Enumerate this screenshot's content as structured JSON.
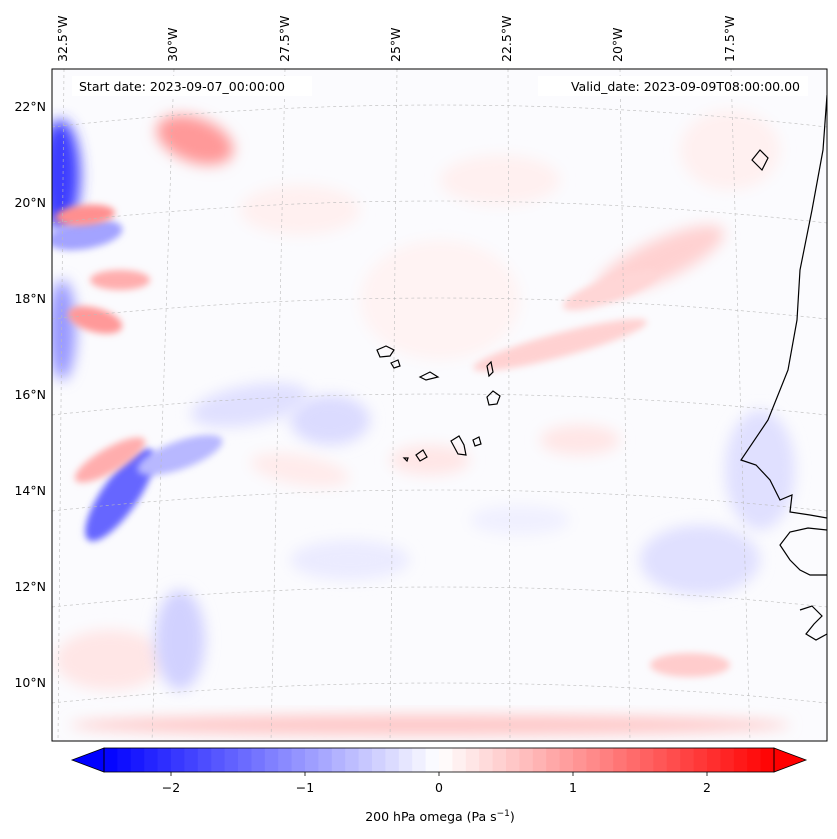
{
  "map": {
    "start_date_label": "Start date: 2023-09-07_00:00:00",
    "valid_date_label": "Valid_date: 2023-09-09T08:00:00.00",
    "lon_labels": [
      "32.5°W",
      "30°W",
      "27.5°W",
      "25°W",
      "22.5°W",
      "20°W",
      "17.5°W"
    ],
    "lat_labels": [
      "22°N",
      "20°N",
      "18°N",
      "16°N",
      "14°N",
      "12°N",
      "10°N"
    ],
    "field": "200 hPa omega",
    "extent": {
      "lon_min": -33.4,
      "lon_max": -15.9,
      "lat_min": 8.8,
      "lat_max": 22.8
    }
  },
  "colorbar": {
    "label_main": "200 hPa omega (Pa s",
    "label_sup": "−1",
    "label_close": ")",
    "ticks": [
      "−2",
      "−1",
      "0",
      "1",
      "2"
    ],
    "min": -2.5,
    "max": 2.5,
    "colors": {
      "negative": "#0000ff",
      "zero": "#ffffff",
      "positive": "#ff0000"
    }
  }
}
